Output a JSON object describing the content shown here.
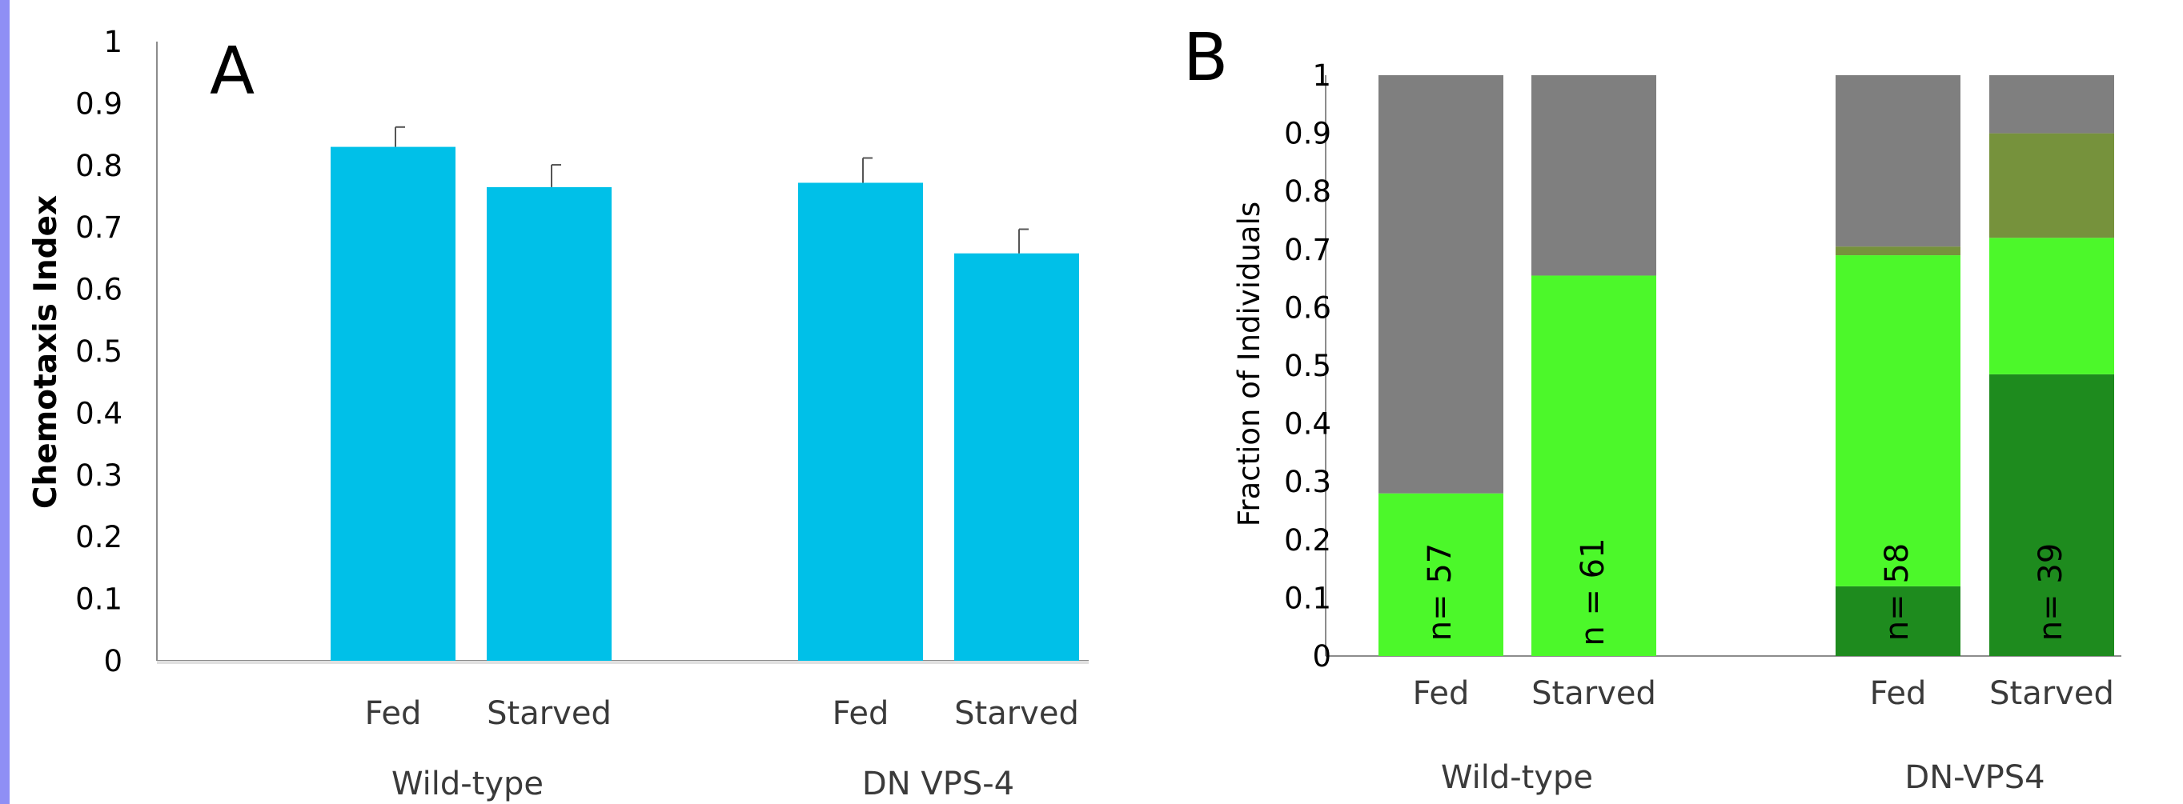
{
  "colors": {
    "accent_bar": "#00c0e8",
    "gray": "#7f7f7f",
    "light_green": "#4cf82a",
    "dark_green": "#1e8b1e",
    "olive": "#76923c",
    "left_edge": "#8f8ff5"
  },
  "chart_data": [
    {
      "type": "bar",
      "panel_label": "A",
      "ylabel": "Chemotaxis Index",
      "ylim": [
        0,
        1
      ],
      "yticks": [
        "0",
        "0.1",
        "0.2",
        "0.3",
        "0.4",
        "0.5",
        "0.6",
        "0.7",
        "0.8",
        "0.9",
        "1"
      ],
      "groups": [
        "Wild-type",
        "DN VPS-4"
      ],
      "categories": [
        "Fed",
        "Starved",
        "Fed",
        "Starved"
      ],
      "values": [
        0.83,
        0.765,
        0.772,
        0.658
      ],
      "errors": [
        0.032,
        0.036,
        0.04,
        0.039
      ]
    },
    {
      "type": "bar",
      "stacked": true,
      "panel_label": "B",
      "ylabel": "Fraction of Individuals",
      "ylim": [
        0,
        1
      ],
      "yticks": [
        "0",
        "0.1",
        "0.2",
        "0.3",
        "0.4",
        "0.5",
        "0.6",
        "0.7",
        "0.8",
        "0.9",
        "1"
      ],
      "groups": [
        "Wild-type",
        "DN-VPS4"
      ],
      "categories": [
        "Fed",
        "Starved",
        "Fed",
        "Starved"
      ],
      "n_labels": [
        "n=  57",
        "n = 61",
        "n= 58",
        "n=  39"
      ],
      "series": [
        {
          "color": "dark_green",
          "values": [
            0,
            0,
            0.12,
            0.485
          ]
        },
        {
          "color": "light_green",
          "values": [
            0.28,
            0.655,
            0.57,
            0.235
          ]
        },
        {
          "color": "olive",
          "values": [
            0,
            0,
            0.015,
            0.18
          ]
        },
        {
          "color": "gray",
          "values": [
            0.72,
            0.345,
            0.295,
            0.1
          ]
        }
      ]
    }
  ]
}
